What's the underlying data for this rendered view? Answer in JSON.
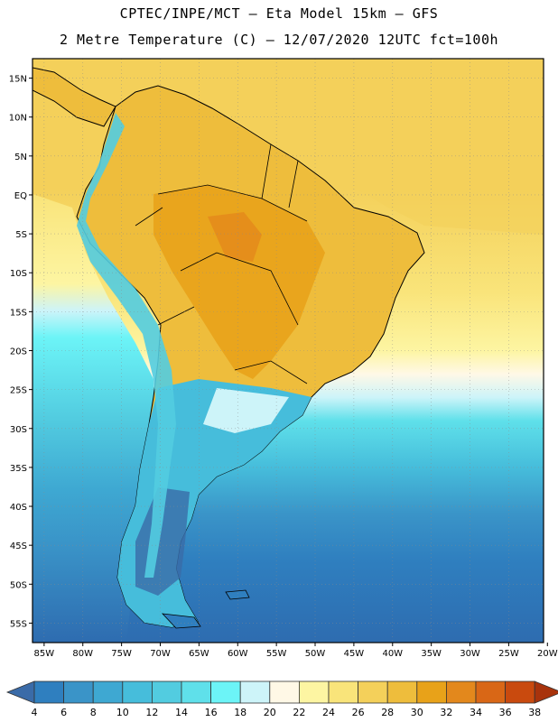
{
  "header": {
    "title_line1": "CPTEC/INPE/MCT –  Eta Model 15km – GFS",
    "title_line2": "2 Metre Temperature (C) – 12/07/2020 12UTC fct=100h"
  },
  "map": {
    "lat_labels": [
      "15N",
      "10N",
      "5N",
      "EQ",
      "5S",
      "10S",
      "15S",
      "20S",
      "25S",
      "30S",
      "35S",
      "40S",
      "45S",
      "50S",
      "55S"
    ],
    "lon_labels": [
      "85W",
      "80W",
      "75W",
      "70W",
      "65W",
      "60W",
      "55W",
      "50W",
      "45W",
      "40W",
      "35W",
      "30W",
      "25W",
      "20W"
    ],
    "lat_range": [
      17.5,
      -57.5
    ],
    "lon_range": [
      -86.5,
      -20.5
    ]
  },
  "colorbar": {
    "labels": [
      "4",
      "6",
      "8",
      "10",
      "12",
      "14",
      "16",
      "18",
      "20",
      "22",
      "24",
      "26",
      "28",
      "30",
      "32",
      "34",
      "36",
      "38"
    ],
    "colors": [
      "#3a6ba8",
      "#2f7fbf",
      "#3a94c8",
      "#3ea8d2",
      "#46bddb",
      "#52cce0",
      "#5fe0ea",
      "#6cf4f7",
      "#cdf4f9",
      "#fff8e6",
      "#fdf5a2",
      "#f9e47a",
      "#f4d05a",
      "#eebd3c",
      "#e8a219",
      "#e3881c",
      "#d96716",
      "#c94a0e",
      "#a8330c"
    ]
  }
}
